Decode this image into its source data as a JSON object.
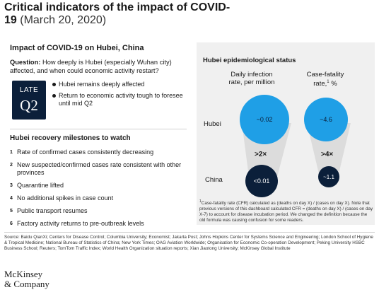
{
  "header": {
    "title_main": "Critical indicators of the impact of COVID-19",
    "title_date": "(March 20, 2020)"
  },
  "left": {
    "heading": "Impact of COVID-19 on Hubei, China",
    "question_label": "Question:",
    "question_text": "How deeply is Hubei (especially Wuhan city) affected, and when could economic activity restart?",
    "late_label": "LATE",
    "quarter_label": "Q2",
    "bullets": [
      "Hubei remains deeply affected",
      "Return to economic activity tough to foresee until mid Q2"
    ],
    "milestones_heading": "Hubei recovery milestones to watch",
    "milestones": [
      {
        "num": "1",
        "text": "Rate of confirmed cases consistently decreasing"
      },
      {
        "num": "2",
        "text": "New suspected/confirmed cases rate consistent with other provinces"
      },
      {
        "num": "3",
        "text": "Quarantine lifted"
      },
      {
        "num": "4",
        "text": "No additional spikes in case count"
      },
      {
        "num": "5",
        "text": "Public transport resumes"
      },
      {
        "num": "6",
        "text": "Factory activity returns to pre-outbreak levels"
      }
    ]
  },
  "right": {
    "heading": "Hubei epidemiological status",
    "col1_head": "Daily infection rate, per million",
    "col2_head_a": "Case-fatality",
    "col2_head_b": "rate,",
    "col2_head_sup": "1",
    "col2_head_c": " %",
    "row1": "Hubei",
    "row2": "China",
    "infection_hubei": "~0.02",
    "infection_china": "<0.01",
    "infection_ratio": ">2×",
    "cfr_hubei": "~4.6",
    "cfr_china": "~1.1",
    "cfr_ratio": ">4×",
    "footnote_sup": "1",
    "footnote": "Case-fatality rate (CFR) calculated as (deaths on day X) / (cases on day X). Note that previous versions of this dashboard calculated CFR = (deaths on day X) / (cases on day X-7) to account for disease incubation period. We changed the definition because the old formula was causing confusion for some readers."
  },
  "footer": {
    "source": "Source: Baidu QianXi; Centers for Disease Control; Columbia University; Economist; Jakarta Post; Johns Hopkins Center for Systems Science and Engineering; London School of Hygiene & Tropical Medicine; National Bureau of Statistics of China; New York Times; OAG Aviation Worldwide; Organisation for Economic Co-operation Development; Peking University HSBC Business School; Reuters; TomTom Traffic Index; World Health Organization situation reports; Xian Jiaotong University; McKinsey Global Institute",
    "logo_line1": "McKinsey",
    "logo_line2": "& Company"
  },
  "colors": {
    "hubei_circle": "#1f9fe6",
    "china_circle": "#0b1f3a",
    "panel_bg": "#f0f0f0"
  }
}
